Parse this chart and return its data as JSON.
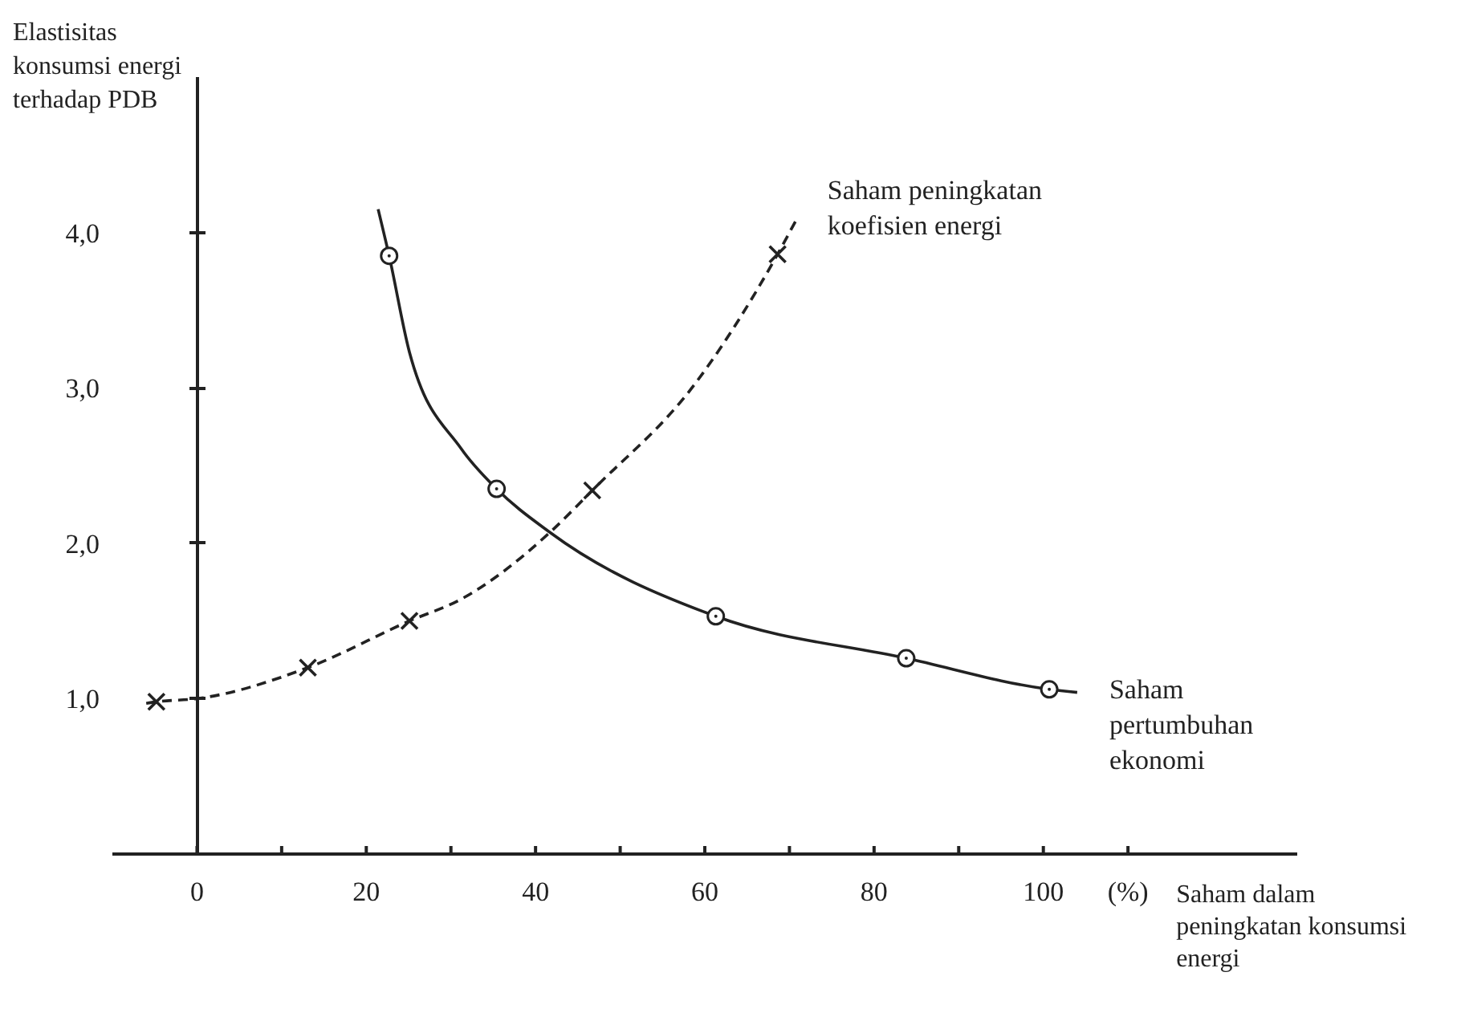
{
  "chart_data": {
    "type": "line",
    "ylabel": "Elastisitas konsumsi energi terhadap PDB",
    "xlabel": "Saham dalam peningkatan konsumsi energi",
    "xlim": [
      -10,
      130
    ],
    "ylim": [
      0,
      5
    ],
    "xticks": [
      0,
      {
        "value": 10,
        "label": null
      },
      20,
      {
        "value": 30,
        "label": null
      },
      40,
      {
        "value": 50,
        "label": null
      },
      60,
      {
        "value": 70,
        "label": null
      },
      80,
      {
        "value": 90,
        "label": null
      },
      100,
      {
        "value": 110,
        "label": "(%)"
      }
    ],
    "yticks": [
      {
        "value": 1,
        "label": "1,0"
      },
      {
        "value": 2,
        "label": "2,0"
      },
      {
        "value": 3,
        "label": "3,0"
      },
      {
        "value": 4,
        "label": "4,0"
      }
    ],
    "grid": false,
    "legend": false,
    "series": [
      {
        "name": "Saham pertumbuhan ekonomi",
        "color": "#222222",
        "line_style": "solid",
        "marker": "none",
        "x": [
          21.4,
          22.7,
          25.1,
          31.2,
          35.4,
          41.7,
          61.3,
          83.8,
          100.7,
          104
        ],
        "values": [
          4.15,
          3.85,
          3.23,
          2.61,
          2.35,
          2.07,
          1.53,
          1.26,
          1.06,
          1.04
        ]
      },
      {
        "name": "Saham peningkatan koefisien energi",
        "color": "#222222",
        "line_style": "dashed",
        "marker": "none",
        "x": [
          -6,
          -4.8,
          0,
          13.1,
          25.1,
          31.2,
          41.7,
          46.7,
          58.9,
          68.6,
          70.7
        ],
        "values": [
          0.97,
          0.98,
          1.0,
          1.2,
          1.5,
          1.64,
          2.07,
          2.34,
          3.03,
          3.86,
          4.07
        ]
      },
      {
        "type": "scatter",
        "color": "#222222",
        "marker": "circle",
        "x": [
          22.7,
          35.4,
          61.3,
          83.8,
          100.7
        ],
        "values": [
          3.85,
          2.35,
          1.53,
          1.26,
          1.06
        ]
      },
      {
        "type": "scatter",
        "color": "#222222",
        "marker": "cross",
        "x": [
          -4.8,
          13.1,
          25.1,
          46.7,
          68.6
        ],
        "values": [
          0.98,
          1.2,
          1.5,
          2.34,
          3.86
        ]
      }
    ]
  }
}
